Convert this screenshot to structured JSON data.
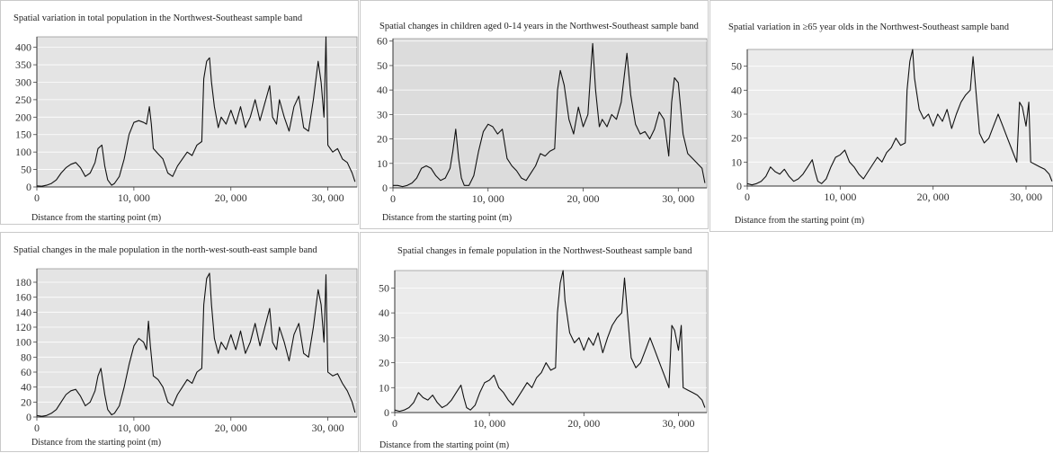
{
  "chart_data": [
    {
      "type": "line",
      "title": "Spatial variation in total population in the Northwest-Southeast sample band",
      "xlabel": "Distance from the starting point (m)",
      "ylabel": "",
      "xlim": [
        0,
        33000
      ],
      "ylim": [
        0,
        430
      ],
      "yticks": [
        0,
        50,
        100,
        150,
        200,
        250,
        300,
        350,
        400
      ],
      "xticks": [
        0,
        10000,
        20000,
        30000
      ],
      "xtick_labels": [
        "0",
        "10, 000",
        "20, 000",
        "30, 000"
      ],
      "grid": true,
      "bg": "#e4e4e4",
      "series": [
        {
          "x": [
            0,
            500,
            1000,
            1500,
            2000,
            2500,
            3000,
            3500,
            4000,
            4500,
            5000,
            5500,
            6000,
            6300,
            6700,
            7000,
            7300,
            7700,
            8000,
            8500,
            9000,
            9500,
            10000,
            10500,
            11000,
            11300,
            11600,
            11800,
            12000,
            12500,
            13000,
            13500,
            14000,
            14500,
            15000,
            15500,
            16000,
            16500,
            17000,
            17200,
            17500,
            17800,
            18000,
            18300,
            18700,
            19000,
            19500,
            20000,
            20500,
            21000,
            21500,
            22000,
            22500,
            23000,
            23500,
            24000,
            24300,
            24700,
            25000,
            25500,
            26000,
            26500,
            27000,
            27500,
            28000,
            28500,
            29000,
            29300,
            29600,
            29800,
            30000,
            30500,
            31000,
            31500,
            32000,
            32500,
            32800
          ],
          "y": [
            3,
            2,
            5,
            10,
            20,
            40,
            55,
            65,
            70,
            55,
            30,
            40,
            70,
            110,
            120,
            60,
            20,
            5,
            10,
            30,
            80,
            150,
            185,
            190,
            185,
            180,
            230,
            180,
            110,
            95,
            80,
            40,
            30,
            60,
            80,
            100,
            90,
            120,
            130,
            310,
            360,
            370,
            300,
            230,
            170,
            200,
            180,
            220,
            180,
            230,
            170,
            200,
            250,
            190,
            240,
            290,
            200,
            180,
            250,
            200,
            160,
            230,
            260,
            170,
            160,
            250,
            360,
            300,
            200,
            430,
            120,
            100,
            110,
            80,
            70,
            40,
            15
          ]
        }
      ]
    },
    {
      "type": "line",
      "title": "Spatial changes in children aged 0-14 years in the Northwest-Southeast sample band",
      "xlabel": "Distance from the starting point (m)",
      "ylabel": "",
      "xlim": [
        0,
        33000
      ],
      "ylim": [
        0,
        61
      ],
      "yticks": [
        0,
        10,
        20,
        30,
        40,
        50,
        60
      ],
      "xticks": [
        0,
        10000,
        20000,
        30000
      ],
      "xtick_labels": [
        "0",
        "10, 000",
        "20, 000",
        "30, 000"
      ],
      "grid": true,
      "bg": "#dcdcdc",
      "series": [
        {
          "x": [
            0,
            500,
            1000,
            1500,
            2000,
            2500,
            3000,
            3500,
            4000,
            4500,
            5000,
            5500,
            6000,
            6300,
            6600,
            6900,
            7200,
            7500,
            8000,
            8500,
            9000,
            9500,
            10000,
            10500,
            11000,
            11500,
            12000,
            12500,
            13000,
            13500,
            14000,
            14500,
            15000,
            15500,
            16000,
            16500,
            17000,
            17300,
            17600,
            18000,
            18500,
            19000,
            19500,
            20000,
            20500,
            20800,
            21000,
            21300,
            21700,
            22000,
            22500,
            23000,
            23500,
            24000,
            24300,
            24600,
            25000,
            25500,
            26000,
            26500,
            27000,
            27500,
            28000,
            28500,
            29000,
            29300,
            29600,
            30000,
            30500,
            31000,
            31500,
            32000,
            32500,
            32800
          ],
          "y": [
            1,
            1,
            0.5,
            1,
            2,
            4,
            8,
            9,
            8,
            5,
            3,
            4,
            8,
            15,
            24,
            12,
            4,
            1,
            1,
            5,
            15,
            23,
            26,
            25,
            22,
            24,
            12,
            9,
            7,
            4,
            3,
            6,
            9,
            14,
            13,
            15,
            16,
            40,
            48,
            42,
            28,
            22,
            33,
            25,
            30,
            48,
            59,
            40,
            25,
            28,
            25,
            30,
            28,
            35,
            45,
            55,
            38,
            26,
            22,
            23,
            20,
            24,
            31,
            28,
            13,
            35,
            45,
            43,
            22,
            14,
            12,
            10,
            8,
            2
          ]
        }
      ]
    },
    {
      "type": "line",
      "title": "Spatial variation in ≥65 year olds in the Northwest-Southeast sample band",
      "xlabel": "Distance from the starting point (m)",
      "ylabel": "",
      "xlim": [
        0,
        33000
      ],
      "ylim": [
        0,
        57
      ],
      "yticks": [
        0,
        10,
        20,
        30,
        40,
        50
      ],
      "xticks": [
        0,
        10000,
        20000,
        30000
      ],
      "xtick_labels": [
        "0",
        "10, 000",
        "20, 000",
        "30, 000"
      ],
      "grid": true,
      "bg": "#ebebeb",
      "series": [
        {
          "x": [
            0,
            500,
            1000,
            1500,
            2000,
            2500,
            3000,
            3500,
            4000,
            4500,
            5000,
            5500,
            6000,
            6500,
            7000,
            7300,
            7600,
            8000,
            8500,
            9000,
            9500,
            10000,
            10500,
            11000,
            11500,
            12000,
            12500,
            13000,
            13500,
            14000,
            14500,
            15000,
            15500,
            16000,
            16500,
            17000,
            17200,
            17500,
            17800,
            18000,
            18500,
            19000,
            19500,
            20000,
            20500,
            21000,
            21500,
            22000,
            22500,
            23000,
            23500,
            24000,
            24300,
            24600,
            25000,
            25500,
            26000,
            26500,
            27000,
            27500,
            28000,
            28500,
            29000,
            29300,
            29600,
            30000,
            30300,
            30500,
            31000,
            31500,
            32000,
            32500,
            32800
          ],
          "y": [
            1,
            0.5,
            1,
            2,
            4,
            8,
            6,
            5,
            7,
            4,
            2,
            3,
            5,
            8,
            11,
            6,
            2,
            1,
            3,
            8,
            12,
            13,
            15,
            10,
            8,
            5,
            3,
            6,
            9,
            12,
            10,
            14,
            16,
            20,
            17,
            18,
            40,
            52,
            57,
            45,
            32,
            28,
            30,
            25,
            30,
            27,
            32,
            24,
            30,
            35,
            38,
            40,
            54,
            40,
            22,
            18,
            20,
            25,
            30,
            25,
            20,
            15,
            10,
            35,
            33,
            25,
            35,
            10,
            9,
            8,
            7,
            5,
            2
          ]
        }
      ]
    },
    {
      "type": "line",
      "title": "Spatial changes in the male population in the north-west-south-east sample band",
      "xlabel": "Distance from the starting point (m)",
      "ylabel": "",
      "xlim": [
        0,
        33000
      ],
      "ylim": [
        0,
        198
      ],
      "yticks": [
        0,
        20,
        40,
        60,
        80,
        100,
        120,
        140,
        160,
        180
      ],
      "xticks": [
        0,
        10000,
        20000,
        30000
      ],
      "xtick_labels": [
        "0",
        "10, 000",
        "20, 000",
        "30, 000"
      ],
      "grid": true,
      "bg": "#e4e4e4",
      "series": [
        {
          "x": [
            0,
            500,
            1000,
            1500,
            2000,
            2500,
            3000,
            3500,
            4000,
            4500,
            5000,
            5500,
            6000,
            6300,
            6600,
            7000,
            7300,
            7700,
            8000,
            8500,
            9000,
            9500,
            10000,
            10500,
            11000,
            11300,
            11500,
            11700,
            12000,
            12500,
            13000,
            13500,
            14000,
            14500,
            15000,
            15500,
            16000,
            16500,
            17000,
            17200,
            17500,
            17800,
            18000,
            18300,
            18700,
            19000,
            19500,
            20000,
            20500,
            21000,
            21500,
            22000,
            22500,
            23000,
            23500,
            24000,
            24300,
            24700,
            25000,
            25500,
            26000,
            26500,
            27000,
            27500,
            28000,
            28500,
            29000,
            29300,
            29600,
            29800,
            30000,
            30500,
            31000,
            31500,
            32000,
            32500,
            32800
          ],
          "y": [
            2,
            1,
            2,
            5,
            10,
            20,
            30,
            35,
            37,
            28,
            15,
            20,
            35,
            55,
            65,
            30,
            10,
            3,
            5,
            15,
            40,
            70,
            95,
            105,
            100,
            90,
            128,
            95,
            55,
            50,
            40,
            20,
            15,
            30,
            40,
            50,
            45,
            60,
            65,
            150,
            185,
            192,
            150,
            105,
            85,
            100,
            90,
            110,
            90,
            115,
            85,
            100,
            125,
            95,
            120,
            145,
            100,
            90,
            120,
            100,
            75,
            110,
            125,
            85,
            80,
            120,
            170,
            150,
            100,
            190,
            60,
            55,
            58,
            45,
            35,
            20,
            6
          ]
        }
      ]
    },
    {
      "type": "line",
      "title": "Spatial changes in female population in the Northwest-Southeast sample band",
      "xlabel": "Distance from the starting point (m)",
      "ylabel": "",
      "xlim": [
        0,
        33000
      ],
      "ylim": [
        0,
        57
      ],
      "yticks": [
        0,
        10,
        20,
        30,
        40,
        50
      ],
      "xticks": [
        0,
        10000,
        20000,
        30000
      ],
      "xtick_labels": [
        "0",
        "10, 000",
        "20, 000",
        "30, 000"
      ],
      "grid": true,
      "bg": "#ebebeb",
      "series": [
        {
          "x": [
            0,
            500,
            1000,
            1500,
            2000,
            2500,
            3000,
            3500,
            4000,
            4500,
            5000,
            5500,
            6000,
            6500,
            7000,
            7300,
            7600,
            8000,
            8500,
            9000,
            9500,
            10000,
            10500,
            11000,
            11500,
            12000,
            12500,
            13000,
            13500,
            14000,
            14500,
            15000,
            15500,
            16000,
            16500,
            17000,
            17200,
            17500,
            17800,
            18000,
            18500,
            19000,
            19500,
            20000,
            20500,
            21000,
            21500,
            22000,
            22500,
            23000,
            23500,
            24000,
            24300,
            24600,
            25000,
            25500,
            26000,
            26500,
            27000,
            27500,
            28000,
            28500,
            29000,
            29300,
            29600,
            30000,
            30300,
            30500,
            31000,
            31500,
            32000,
            32500,
            32800
          ],
          "y": [
            1,
            0.5,
            1,
            2,
            4,
            8,
            6,
            5,
            7,
            4,
            2,
            3,
            5,
            8,
            11,
            6,
            2,
            1,
            3,
            8,
            12,
            13,
            15,
            10,
            8,
            5,
            3,
            6,
            9,
            12,
            10,
            14,
            16,
            20,
            17,
            18,
            40,
            52,
            57,
            45,
            32,
            28,
            30,
            25,
            30,
            27,
            32,
            24,
            30,
            35,
            38,
            40,
            54,
            40,
            22,
            18,
            20,
            25,
            30,
            25,
            20,
            15,
            10,
            35,
            33,
            25,
            35,
            10,
            9,
            8,
            7,
            5,
            2
          ]
        }
      ]
    }
  ]
}
